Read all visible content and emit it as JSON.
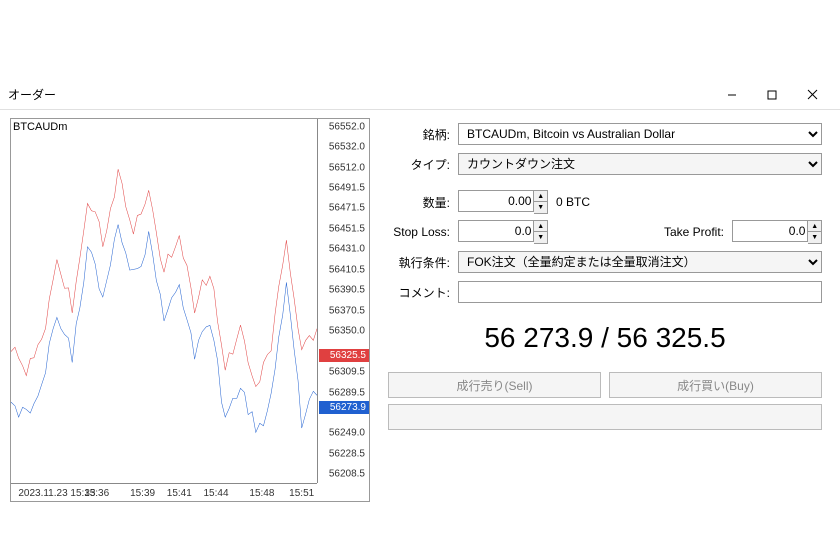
{
  "window": {
    "title": "オーダー"
  },
  "chart": {
    "symbol": "BTCAUDm",
    "y_min": 56200,
    "y_max": 56560,
    "y_ticks": [
      56552.0,
      56532.0,
      56512.0,
      56491.5,
      56471.5,
      56451.5,
      56431.0,
      56410.5,
      56390.5,
      56370.5,
      56350.0,
      56309.5,
      56289.5,
      56249.0,
      56228.5,
      56208.5
    ],
    "ask_price": 56325.5,
    "bid_price": 56273.9,
    "ask_color": "#e04040",
    "bid_color": "#2060d0",
    "x_labels": [
      "2023.11.23 15:33",
      "15:36",
      "15:39",
      "15:41",
      "15:44",
      "15:48",
      "15:51"
    ],
    "x_positions": [
      15,
      28,
      43,
      55,
      67,
      82,
      95
    ],
    "ask_series": [
      [
        0,
        56330
      ],
      [
        5,
        56315
      ],
      [
        10,
        56340
      ],
      [
        15,
        56420
      ],
      [
        20,
        56375
      ],
      [
        25,
        56480
      ],
      [
        30,
        56440
      ],
      [
        35,
        56505
      ],
      [
        40,
        56455
      ],
      [
        45,
        56490
      ],
      [
        50,
        56410
      ],
      [
        55,
        56440
      ],
      [
        60,
        56375
      ],
      [
        65,
        56410
      ],
      [
        70,
        56315
      ],
      [
        75,
        56350
      ],
      [
        80,
        56300
      ],
      [
        85,
        56330
      ],
      [
        90,
        56445
      ],
      [
        95,
        56330
      ],
      [
        100,
        56350
      ]
    ],
    "bid_series": [
      [
        0,
        56280
      ],
      [
        5,
        56265
      ],
      [
        10,
        56290
      ],
      [
        15,
        56370
      ],
      [
        20,
        56325
      ],
      [
        25,
        56430
      ],
      [
        30,
        56390
      ],
      [
        35,
        56455
      ],
      [
        40,
        56405
      ],
      [
        45,
        56440
      ],
      [
        50,
        56360
      ],
      [
        55,
        56390
      ],
      [
        60,
        56325
      ],
      [
        65,
        56360
      ],
      [
        70,
        56265
      ],
      [
        75,
        56300
      ],
      [
        80,
        56250
      ],
      [
        85,
        56280
      ],
      [
        90,
        56395
      ],
      [
        95,
        56260
      ],
      [
        100,
        56295
      ]
    ]
  },
  "form": {
    "symbol_label": "銘柄:",
    "symbol_value": "BTCAUDm, Bitcoin vs Australian Dollar",
    "type_label": "タイプ:",
    "type_value": "カウントダウン注文",
    "volume_label": "数量:",
    "volume_value": "0.00",
    "volume_unit": "0 BTC",
    "sl_label": "Stop Loss:",
    "sl_value": "0.0",
    "tp_label": "Take Profit:",
    "tp_value": "0.0",
    "exec_label": "執行条件:",
    "exec_value": "FOK注文（全量約定または全量取消注文）",
    "comment_label": "コメント:",
    "comment_value": "",
    "big_price": "56 273.9 / 56 325.5",
    "sell_label": "成行売り(Sell)",
    "buy_label": "成行買い(Buy)"
  }
}
